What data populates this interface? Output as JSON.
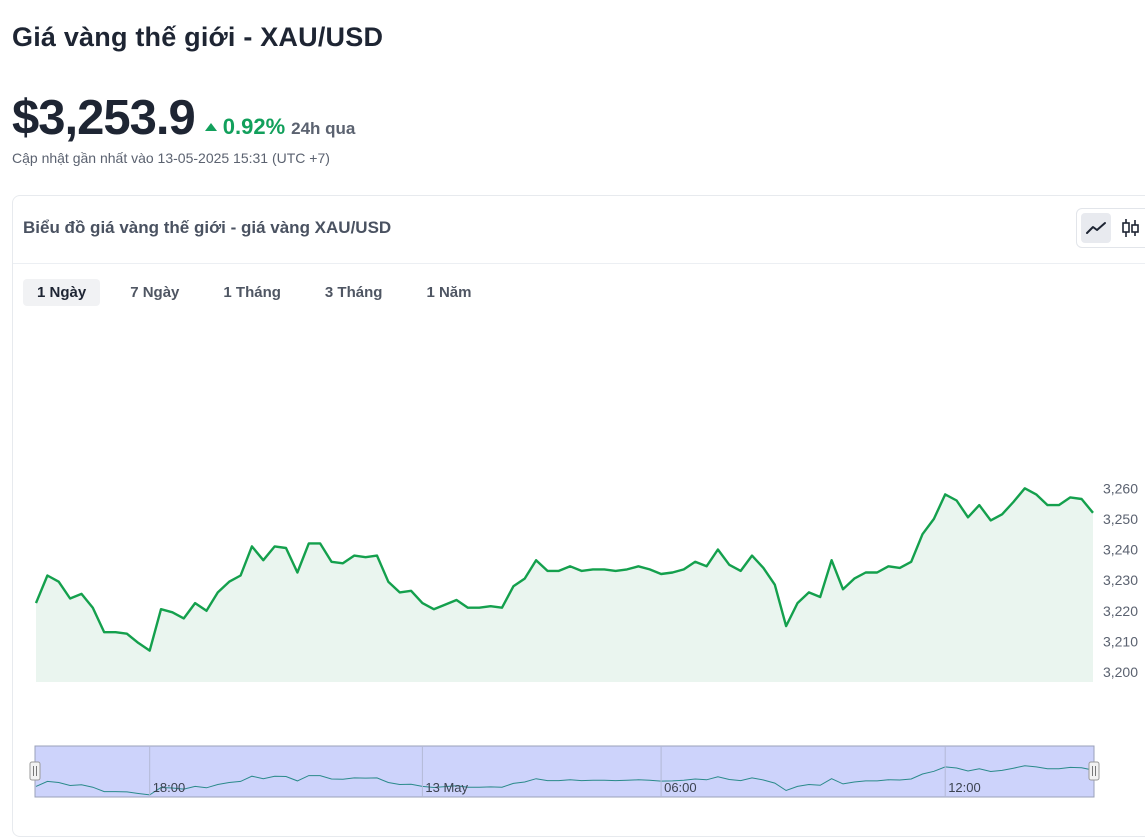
{
  "header": {
    "title": "Giá vàng thế giới - XAU/USD",
    "price": "$3,253.9",
    "change_pct": "0.92%",
    "change_period": "24h qua",
    "updated": "Cập nhật gần nhất vào 13-05-2025 15:31 (UTC +7)"
  },
  "card": {
    "title": "Biểu đồ giá vàng thế giới - giá vàng XAU/USD",
    "tabs": [
      {
        "label": "1 Ngày",
        "active": true
      },
      {
        "label": "7 Ngày",
        "active": false
      },
      {
        "label": "1 Tháng",
        "active": false
      },
      {
        "label": "3 Tháng",
        "active": false
      },
      {
        "label": "1 Năm",
        "active": false
      }
    ],
    "chart_type_buttons": [
      {
        "icon": "line-chart-icon",
        "active": true
      },
      {
        "icon": "candlestick-icon",
        "active": false
      }
    ]
  },
  "colors": {
    "line": "#14a04d",
    "area": "#eaf5ef",
    "positive": "#12a05c",
    "navigator_fill": "#cdd3fb",
    "navigator_border": "#9aa0b8"
  },
  "chart_data": {
    "type": "area",
    "title": "",
    "xlabel": "",
    "ylabel": "",
    "ylim": [
      3200,
      3265
    ],
    "yticks": [
      3200,
      3210,
      3220,
      3230,
      3240,
      3250,
      3260
    ],
    "ytick_labels": [
      "3,200",
      "3,210",
      "3,220",
      "3,230",
      "3,240",
      "3,250",
      "3,260"
    ],
    "grid": false,
    "navigator_labels": [
      {
        "label": "18:00",
        "index": 10
      },
      {
        "label": "13 May",
        "index": 34
      },
      {
        "label": "06:00",
        "index": 55
      },
      {
        "label": "12:00",
        "index": 80
      }
    ],
    "series": [
      {
        "values": [
          3222.5,
          3231.5,
          3229.5,
          3224,
          3225.5,
          3221,
          3213,
          3213,
          3212.5,
          3209.5,
          3207,
          3220.5,
          3219.5,
          3217.5,
          3222.5,
          3220,
          3226,
          3229.5,
          3231.5,
          3241,
          3236.5,
          3241,
          3240.5,
          3232.5,
          3242,
          3242,
          3236,
          3235.5,
          3238,
          3237.5,
          3238,
          3229.5,
          3226,
          3226.5,
          3222.5,
          3220.5,
          3222,
          3223.5,
          3221,
          3221,
          3221.5,
          3221,
          3228,
          3230.5,
          3236.5,
          3233,
          3233,
          3234.5,
          3233,
          3233.5,
          3233.5,
          3233,
          3233.5,
          3234.5,
          3233.5,
          3232,
          3232.5,
          3233.5,
          3236,
          3234.5,
          3240,
          3235,
          3233,
          3238,
          3234,
          3228.5,
          3215,
          3222.5,
          3226,
          3224.5,
          3236.5,
          3227,
          3230.5,
          3232.5,
          3232.5,
          3234.5,
          3234,
          3236,
          3245,
          3250,
          3258,
          3256,
          3250.5,
          3254.5,
          3249.5,
          3251.5,
          3255.5,
          3260,
          3258,
          3254.5,
          3254.5,
          3257,
          3256.5,
          3252
        ]
      }
    ]
  }
}
